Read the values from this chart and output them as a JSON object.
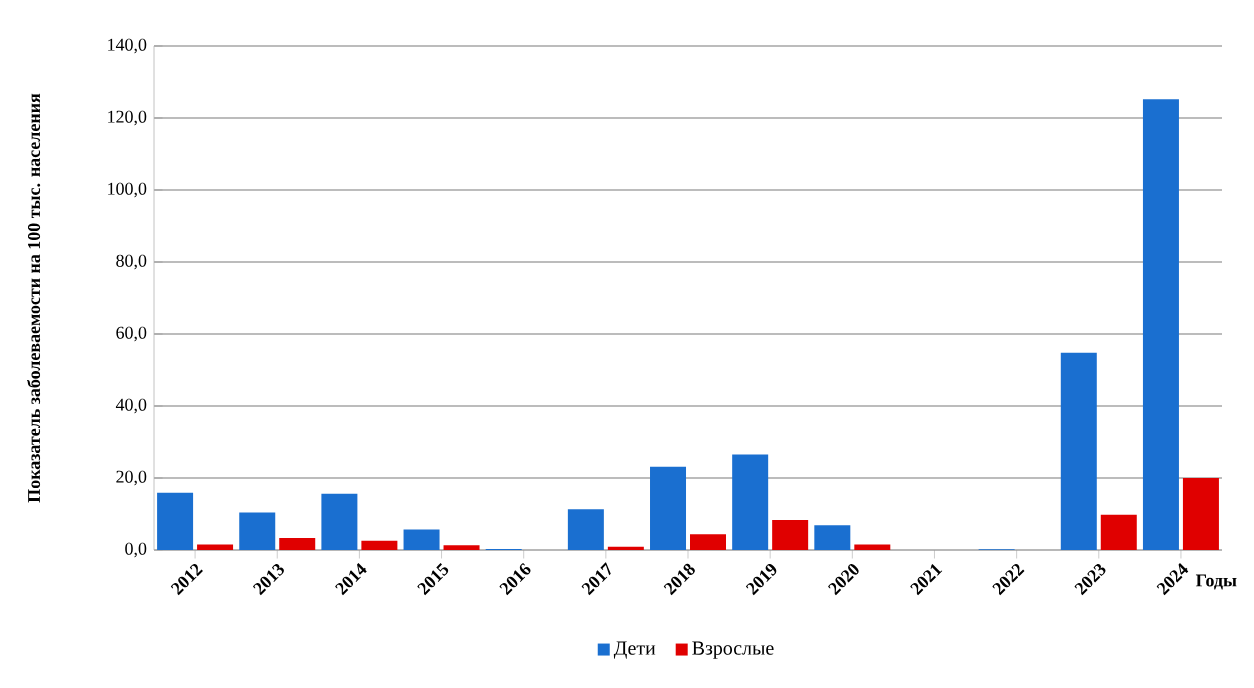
{
  "chart_data": {
    "type": "bar",
    "ylabel": "Показатель заболеваемости  на 100 тыс. населения",
    "xlabel": "Годы",
    "categories": [
      "2012",
      "2013",
      "2014",
      "2015",
      "2016",
      "2017",
      "2018",
      "2019",
      "2020",
      "2021",
      "2022",
      "2023",
      "2024"
    ],
    "series": [
      {
        "name": "Дети",
        "color": "#1a6fd0",
        "values": [
          15.9,
          10.4,
          15.6,
          5.7,
          0.3,
          11.3,
          23.1,
          26.5,
          6.9,
          0,
          0.2,
          54.8,
          125.2
        ]
      },
      {
        "name": "Взрослые",
        "color": "#e00000",
        "values": [
          1.5,
          3.3,
          2.6,
          1.3,
          0,
          0.9,
          4.4,
          8.3,
          1.5,
          0,
          0,
          9.8,
          20
        ]
      }
    ],
    "ylim": [
      0,
      140
    ],
    "yticks": [
      {
        "value": 0,
        "label": "0,0"
      },
      {
        "value": 20,
        "label": "20,0"
      },
      {
        "value": 40,
        "label": "40,0"
      },
      {
        "value": 60,
        "label": "60,0"
      },
      {
        "value": 80,
        "label": "80,0"
      },
      {
        "value": 100,
        "label": "100,0"
      },
      {
        "value": 120,
        "label": "120,0"
      },
      {
        "value": 140,
        "label": "140,0"
      }
    ],
    "grid": "y",
    "legend": "bottom"
  }
}
